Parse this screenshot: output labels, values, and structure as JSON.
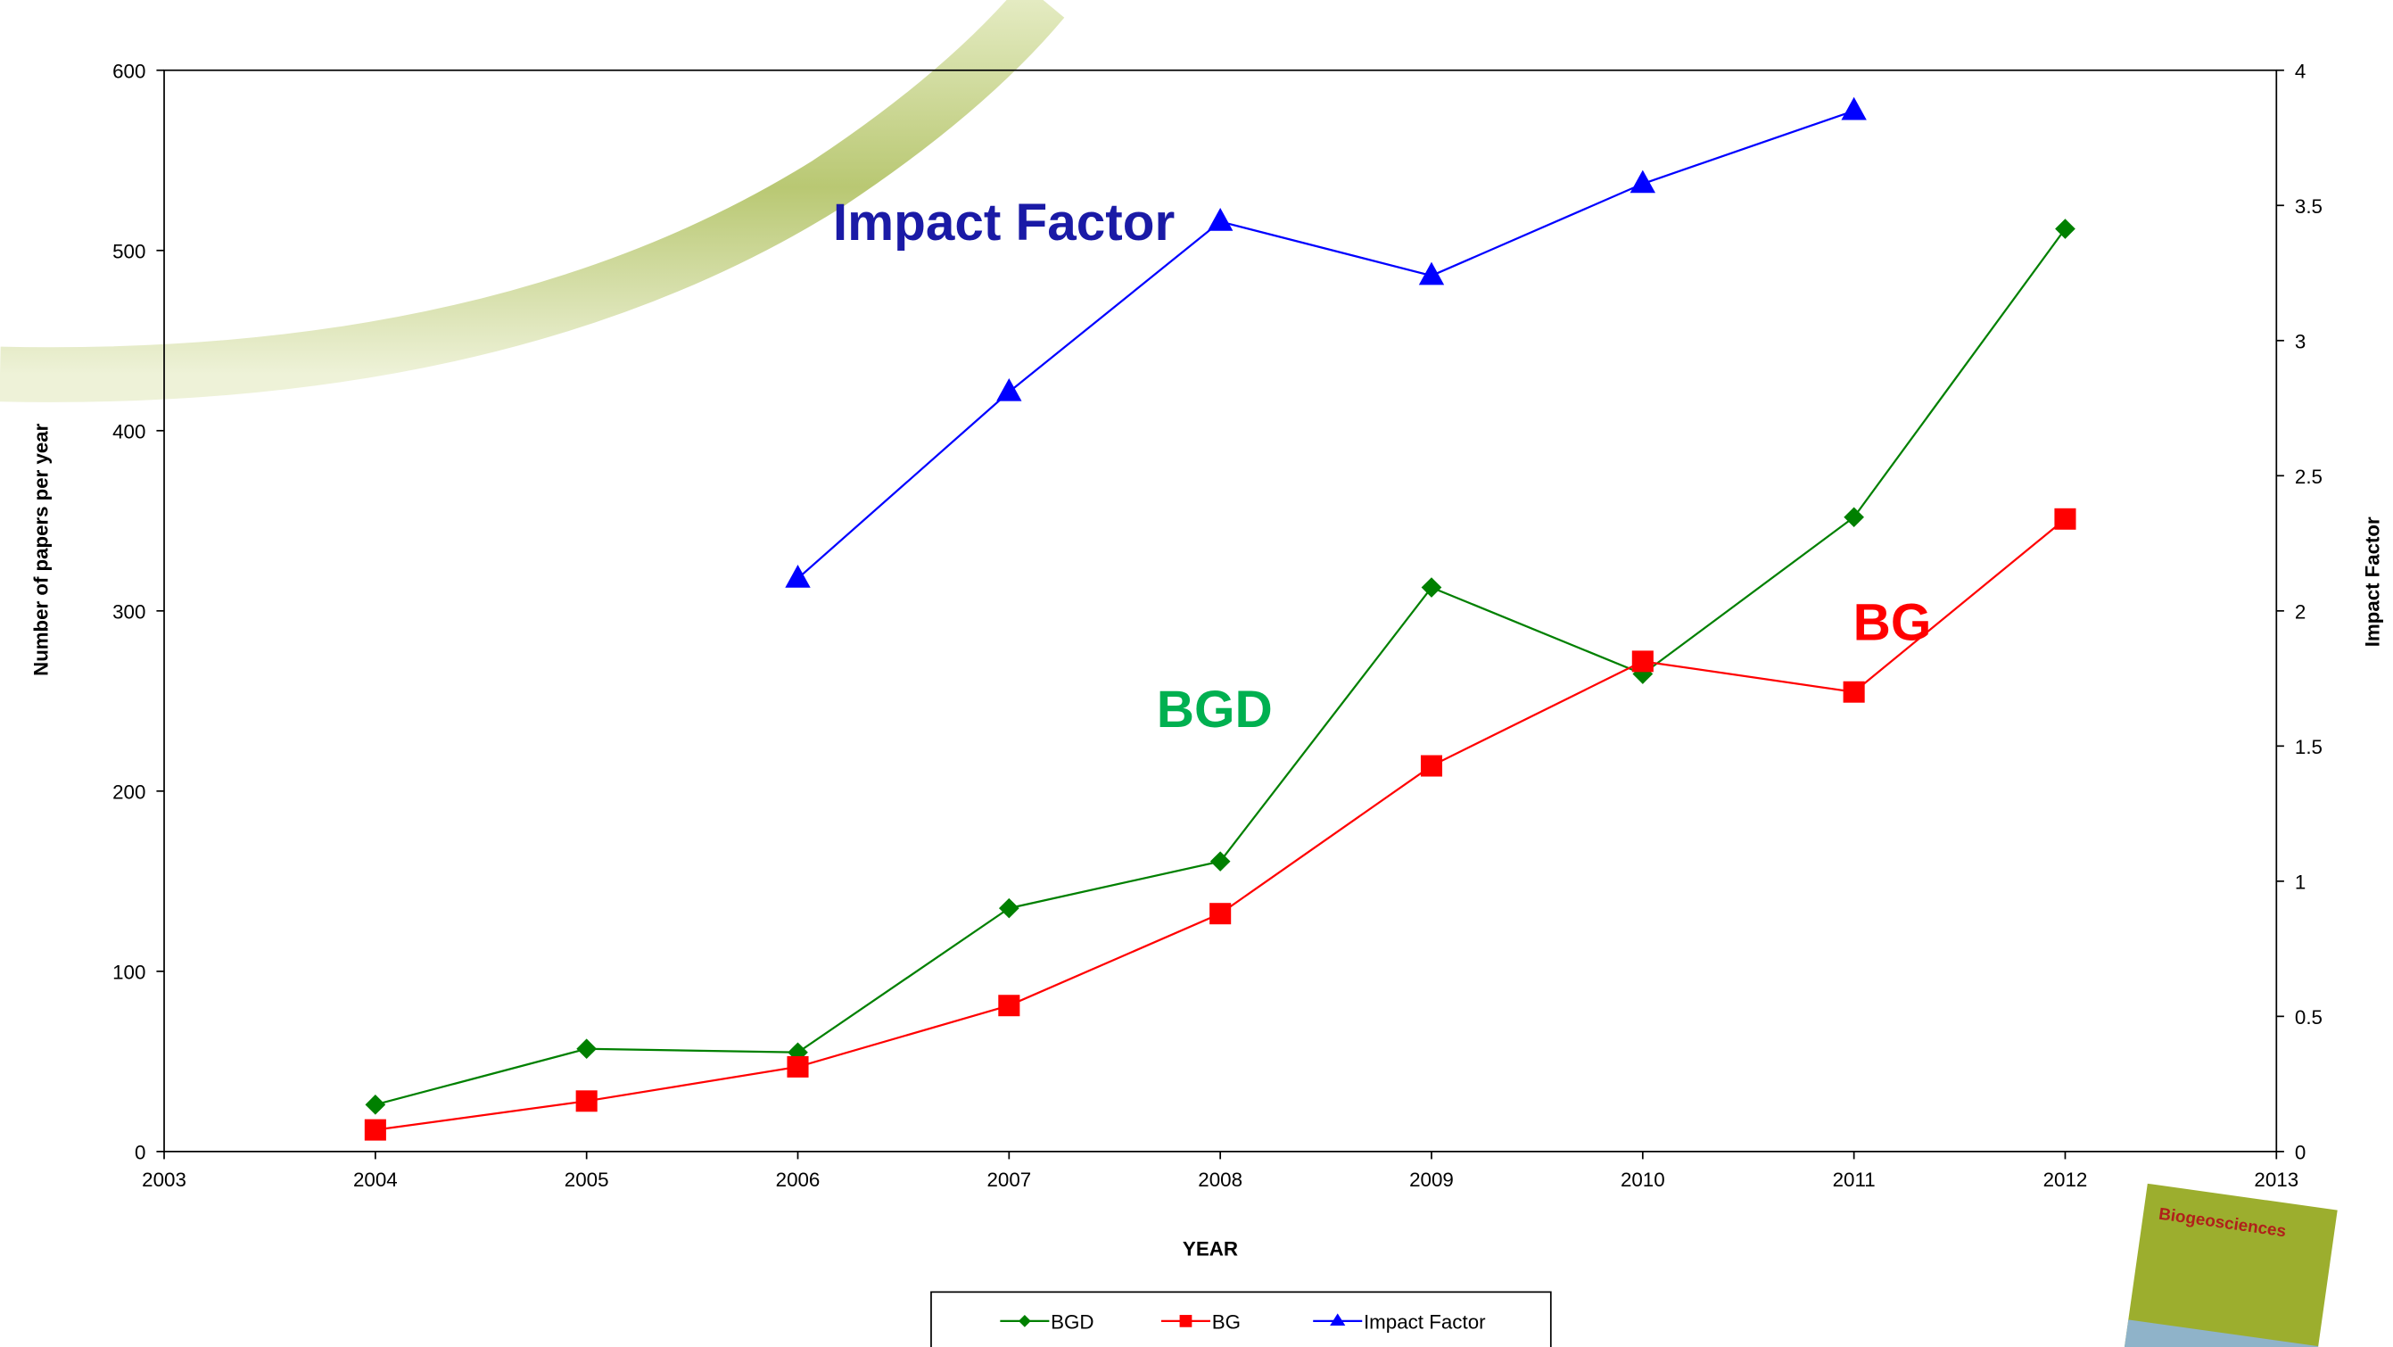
{
  "chart_data": {
    "type": "line",
    "x": [
      2004,
      2005,
      2006,
      2007,
      2008,
      2009,
      2010,
      2011,
      2012
    ],
    "series": [
      {
        "name": "BGD",
        "color": "#008000",
        "marker": "diamond",
        "values": [
          26,
          57,
          55,
          135,
          161,
          313,
          265,
          352,
          512
        ]
      },
      {
        "name": "BG",
        "color": "#ff0000",
        "marker": "square",
        "values": [
          12,
          28,
          47,
          81,
          132,
          214,
          272,
          255,
          351
        ]
      },
      {
        "name": "Impact Factor",
        "color": "#0000ff",
        "marker": "triangle",
        "axis": "y2",
        "values": [
          null,
          null,
          2.12,
          2.81,
          3.44,
          3.24,
          3.58,
          3.85,
          null
        ]
      }
    ],
    "xlabel": "YEAR",
    "ylabel": "Number of papers per year",
    "y2label": "Impact Factor",
    "xlim": [
      2003,
      2013
    ],
    "xticks": [
      2003,
      2004,
      2005,
      2006,
      2007,
      2008,
      2009,
      2010,
      2011,
      2012,
      2013
    ],
    "ylim": [
      0,
      600
    ],
    "yticks": [
      0,
      100,
      200,
      300,
      400,
      500,
      600
    ],
    "y2lim": [
      0,
      4
    ],
    "y2ticks": [
      0,
      0.5,
      1,
      1.5,
      2,
      2.5,
      3,
      3.5,
      4
    ],
    "annotations": [
      {
        "text": "Impact Factor",
        "color": "#1a1aa6"
      },
      {
        "text": "BGD",
        "color": "#00b050"
      },
      {
        "text": "BG",
        "color": "#ff0000"
      }
    ],
    "legend": "bottom",
    "grid": false,
    "cover_title": "Biogeosciences"
  }
}
